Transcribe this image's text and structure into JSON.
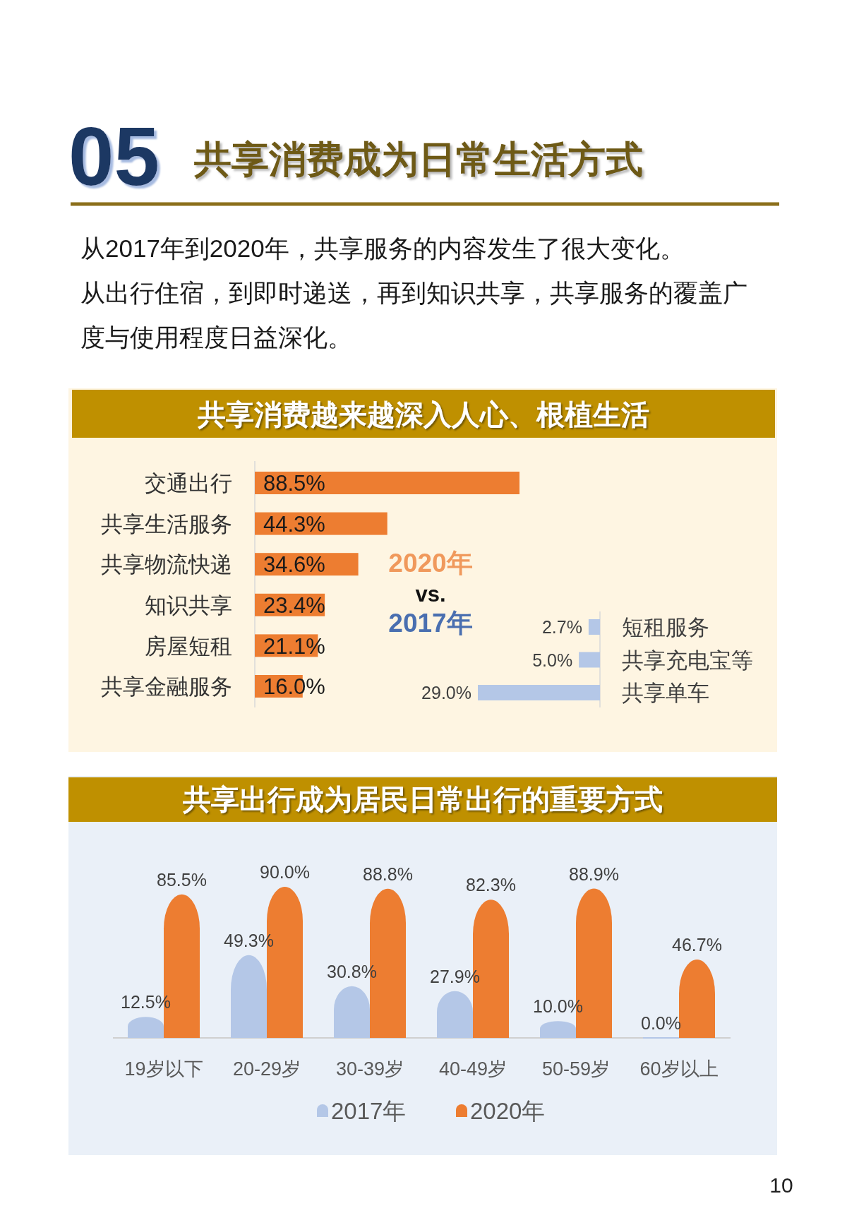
{
  "chart_data": [
    {
      "type": "other",
      "title": "共享消费成为日常生活方式",
      "annotations": [
        "05",
        "从2017年到2020年，共享服务的内容发生了很大变化。",
        "从出行住宿，到即时递送，再到知识共享，共享服务的覆盖广度与使用程度日益深化。"
      ]
    },
    {
      "type": "bar",
      "orientation": "horizontal",
      "title": "共享消费越来越深入人心、根植生活",
      "categories": [
        "交通出行",
        "共享生活服务",
        "共享物流快递",
        "知识共享",
        "房屋短租",
        "共享金融服务"
      ],
      "series": [
        {
          "name": "2020年",
          "color": "#ed7d31",
          "values": [
            88.5,
            44.3,
            34.6,
            23.4,
            21.1,
            16.0
          ],
          "value_labels": [
            "88.5%",
            "44.3%",
            "34.6%",
            "23.4%",
            "21.1%",
            "16.0%"
          ]
        }
      ],
      "annotations": [
        "vs."
      ]
    },
    {
      "type": "bar",
      "orientation": "horizontal",
      "categories": [
        "短租服务",
        "共享充电宝等",
        "共享单车"
      ],
      "series": [
        {
          "name": "2017年",
          "color": "#b4c7e7",
          "values": [
            2.7,
            5.0,
            29.0
          ],
          "value_labels": [
            "2.7%",
            "5.0%",
            "29.0%"
          ]
        }
      ]
    },
    {
      "type": "bar",
      "title": "共享出行成为居民日常出行的重要方式",
      "categories": [
        "19岁以下",
        "20-29岁",
        "30-39岁",
        "40-49岁",
        "50-59岁",
        "60岁以上"
      ],
      "series": [
        {
          "name": "2017年",
          "color": "#b4c7e7",
          "values": [
            12.5,
            49.3,
            30.8,
            27.9,
            10.0,
            0.0
          ],
          "value_labels": [
            "12.5%",
            "49.3%",
            "30.8%",
            "27.9%",
            "10.0%",
            "0.0%"
          ]
        },
        {
          "name": "2020年",
          "color": "#ed7d31",
          "values": [
            85.5,
            90.0,
            88.8,
            82.3,
            88.9,
            46.7
          ],
          "value_labels": [
            "85.5%",
            "90.0%",
            "88.8%",
            "82.3%",
            "88.9%",
            "46.7%"
          ]
        }
      ],
      "legend": "bottom",
      "annotations": [
        "10"
      ]
    }
  ]
}
